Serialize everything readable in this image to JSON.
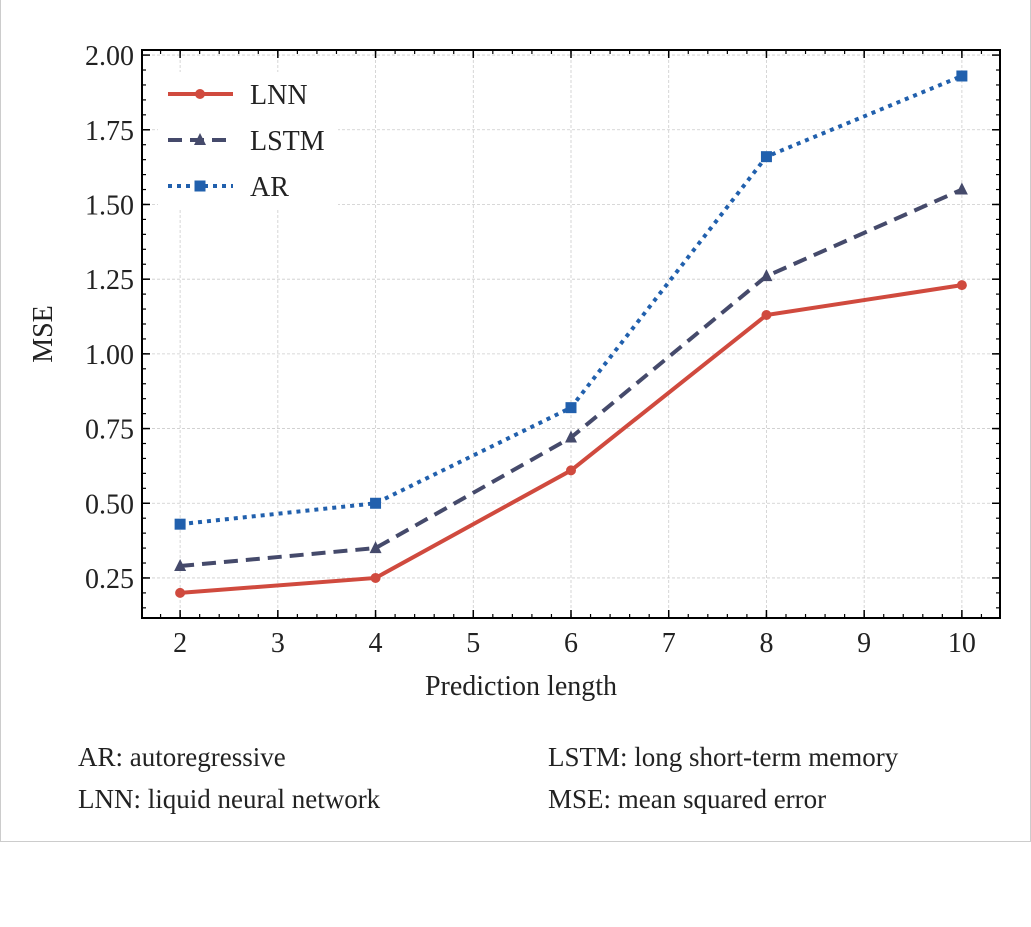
{
  "chart_data": {
    "type": "line",
    "title": "",
    "xlabel": "Prediction length",
    "ylabel": "MSE",
    "x": [
      2,
      4,
      6,
      8,
      10
    ],
    "xlim": [
      1.61,
      10.39
    ],
    "ylim": [
      0.116,
      2.017
    ],
    "xticks": [
      2,
      3,
      4,
      5,
      6,
      7,
      8,
      9,
      10
    ],
    "yticks": [
      "0.25",
      "0.50",
      "0.75",
      "1.00",
      "1.25",
      "1.50",
      "1.75",
      "2.00"
    ],
    "grid": true,
    "legend_position": "top-left",
    "series": [
      {
        "name": "LNN",
        "values": [
          0.2,
          0.25,
          0.61,
          1.13,
          1.23
        ],
        "color": "#d04a3e",
        "style": "solid",
        "marker": "circle"
      },
      {
        "name": "LSTM",
        "values": [
          0.29,
          0.35,
          0.72,
          1.26,
          1.55
        ],
        "color": "#454a6b",
        "style": "dashed",
        "marker": "triangle"
      },
      {
        "name": "AR",
        "values": [
          0.43,
          0.5,
          0.82,
          1.66,
          1.93
        ],
        "color": "#2160ad",
        "style": "dotted",
        "marker": "square"
      }
    ]
  },
  "footnotes": [
    "AR: autoregressive",
    "LSTM: long short-term memory",
    "LNN: liquid neural network",
    "MSE: mean squared error"
  ]
}
